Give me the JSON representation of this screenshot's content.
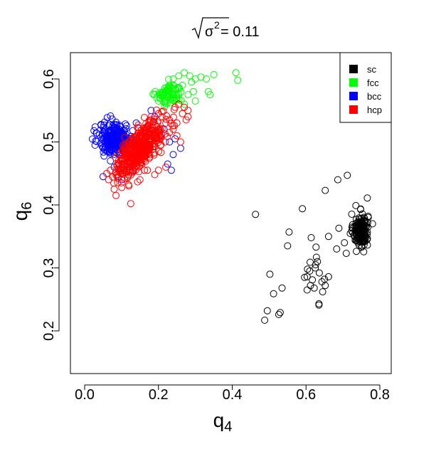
{
  "chart_data": {
    "type": "scatter",
    "title": {
      "symbol": "σ",
      "superscript": "2",
      "suffix": " = 0.11"
    },
    "xlabel": {
      "text": "q",
      "subscript": "4"
    },
    "ylabel": {
      "text": "q",
      "subscript": "6"
    },
    "xlim": [
      -0.05,
      0.83
    ],
    "ylim": [
      0.13,
      0.645
    ],
    "xticks": [
      "0.0",
      "0.2",
      "0.4",
      "0.6",
      "0.8"
    ],
    "yticks": [
      "0.2",
      "0.3",
      "0.4",
      "0.5",
      "0.6"
    ],
    "legend_position": "top-right",
    "marker": "open-circle",
    "series": [
      {
        "name": "sc",
        "color": "#000000",
        "points": [
          [
            0.463,
            0.385
          ],
          [
            0.59,
            0.394
          ],
          [
            0.652,
            0.423
          ],
          [
            0.686,
            0.44
          ],
          [
            0.712,
            0.447
          ],
          [
            0.735,
            0.399
          ],
          [
            0.766,
            0.411
          ],
          [
            0.554,
            0.357
          ],
          [
            0.55,
            0.335
          ],
          [
            0.614,
            0.348
          ],
          [
            0.627,
            0.333
          ],
          [
            0.661,
            0.35
          ],
          [
            0.689,
            0.363
          ],
          [
            0.704,
            0.34
          ],
          [
            0.683,
            0.33
          ],
          [
            0.709,
            0.323
          ],
          [
            0.628,
            0.317
          ],
          [
            0.611,
            0.309
          ],
          [
            0.604,
            0.298
          ],
          [
            0.596,
            0.285
          ],
          [
            0.603,
            0.286
          ],
          [
            0.626,
            0.305
          ],
          [
            0.636,
            0.292
          ],
          [
            0.65,
            0.282
          ],
          [
            0.661,
            0.286
          ],
          [
            0.643,
            0.278
          ],
          [
            0.617,
            0.281
          ],
          [
            0.612,
            0.272
          ],
          [
            0.622,
            0.268
          ],
          [
            0.603,
            0.265
          ],
          [
            0.652,
            0.272
          ],
          [
            0.645,
            0.262
          ],
          [
            0.635,
            0.243
          ],
          [
            0.635,
            0.241
          ],
          [
            0.502,
            0.29
          ],
          [
            0.535,
            0.268
          ],
          [
            0.512,
            0.259
          ],
          [
            0.53,
            0.229
          ],
          [
            0.526,
            0.226
          ],
          [
            0.495,
            0.232
          ],
          [
            0.488,
            0.217
          ],
          [
            0.625,
            0.3
          ],
          [
            0.631,
            0.31
          ],
          [
            0.61,
            0.295
          ]
        ],
        "cluster": {
          "cx": 0.748,
          "cy": 0.36,
          "sx": 0.01,
          "sy": 0.013,
          "n": 170
        }
      },
      {
        "name": "fcc",
        "color": "#00ff00",
        "points": [
          [
            0.24,
            0.6
          ],
          [
            0.255,
            0.605
          ],
          [
            0.27,
            0.61
          ],
          [
            0.285,
            0.605
          ],
          [
            0.3,
            0.6
          ],
          [
            0.315,
            0.603
          ],
          [
            0.33,
            0.6
          ],
          [
            0.35,
            0.607
          ],
          [
            0.41,
            0.61
          ],
          [
            0.415,
            0.598
          ],
          [
            0.34,
            0.575
          ],
          [
            0.335,
            0.58
          ],
          [
            0.265,
            0.59
          ],
          [
            0.28,
            0.575
          ],
          [
            0.295,
            0.58
          ],
          [
            0.3,
            0.565
          ],
          [
            0.27,
            0.56
          ],
          [
            0.245,
            0.585
          ],
          [
            0.22,
            0.58
          ],
          [
            0.23,
            0.59
          ],
          [
            0.2,
            0.565
          ],
          [
            0.205,
            0.57
          ],
          [
            0.29,
            0.595
          ],
          [
            0.255,
            0.575
          ]
        ],
        "cluster": {
          "cx": 0.23,
          "cy": 0.575,
          "sx": 0.018,
          "sy": 0.009,
          "n": 70
        }
      },
      {
        "name": "bcc",
        "color": "#0000ff",
        "points": [
          [
            0.26,
            0.49
          ],
          [
            0.24,
            0.48
          ],
          [
            0.225,
            0.465
          ],
          [
            0.235,
            0.455
          ],
          [
            0.23,
            0.5
          ],
          [
            0.215,
            0.52
          ],
          [
            0.205,
            0.51
          ],
          [
            0.19,
            0.54
          ],
          [
            0.18,
            0.55
          ],
          [
            0.13,
            0.455
          ],
          [
            0.08,
            0.46
          ],
          [
            0.05,
            0.445
          ],
          [
            0.07,
            0.47
          ],
          [
            0.14,
            0.53
          ],
          [
            0.1,
            0.44
          ],
          [
            0.245,
            0.505
          ]
        ],
        "cluster": {
          "cx": 0.085,
          "cy": 0.505,
          "sx": 0.022,
          "sy": 0.012,
          "n": 320
        }
      },
      {
        "name": "hcp",
        "color": "#ff0000",
        "points": [
          [
            0.125,
            0.402
          ],
          [
            0.085,
            0.415
          ],
          [
            0.08,
            0.425
          ],
          [
            0.1,
            0.435
          ],
          [
            0.065,
            0.44
          ],
          [
            0.19,
            0.448
          ],
          [
            0.2,
            0.455
          ],
          [
            0.22,
            0.46
          ],
          [
            0.245,
            0.555
          ],
          [
            0.255,
            0.56
          ],
          [
            0.265,
            0.545
          ],
          [
            0.275,
            0.535
          ],
          [
            0.28,
            0.54
          ],
          [
            0.27,
            0.555
          ],
          [
            0.25,
            0.53
          ],
          [
            0.24,
            0.52
          ],
          [
            0.23,
            0.515
          ],
          [
            0.25,
            0.51
          ],
          [
            0.28,
            0.55
          ],
          [
            0.26,
            0.5
          ],
          [
            0.07,
            0.455
          ],
          [
            0.06,
            0.45
          ],
          [
            0.12,
            0.43
          ],
          [
            0.15,
            0.44
          ],
          [
            0.17,
            0.455
          ],
          [
            0.09,
            0.445
          ],
          [
            0.2,
            0.545
          ],
          [
            0.23,
            0.535
          ],
          [
            0.22,
            0.53
          ],
          [
            0.21,
            0.54
          ]
        ],
        "cluster": {
          "cx": 0.15,
          "cy": 0.49,
          "sx": 0.032,
          "sy": 0.022,
          "rho": 0.72,
          "n": 450
        }
      }
    ]
  }
}
